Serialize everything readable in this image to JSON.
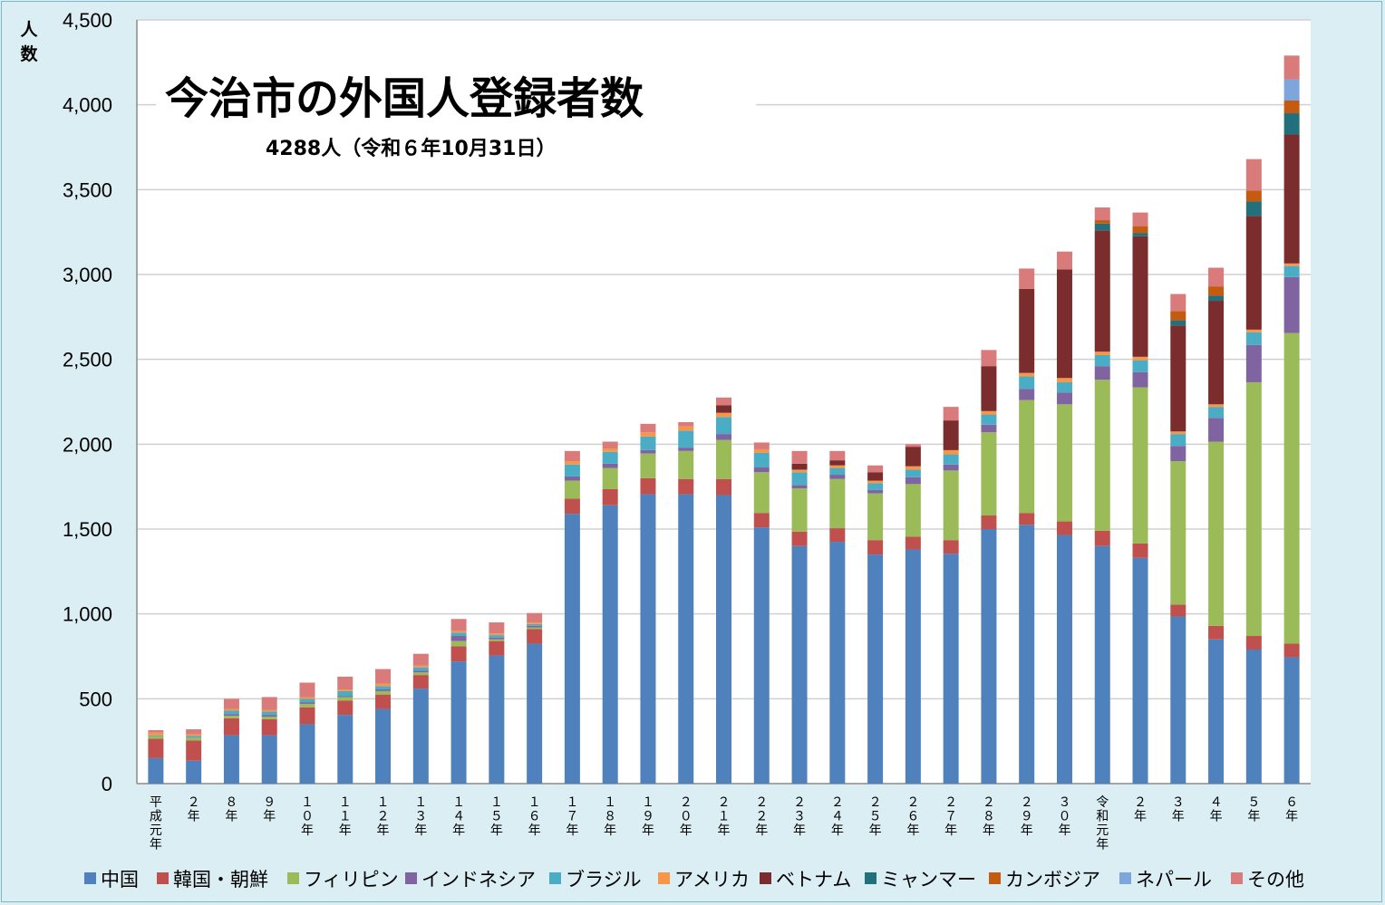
{
  "chart_data": {
    "type": "bar",
    "stacked": true,
    "title": "今治市の外国人登録者数",
    "subtitle": "4288人（令和６年10月31日）",
    "ylabel": "人数",
    "ylim": [
      0,
      4500
    ],
    "yticks": [
      "0",
      "500",
      "1,000",
      "1,500",
      "2,000",
      "2,500",
      "3,000",
      "3,500",
      "4,000",
      "4,500"
    ],
    "grid": true,
    "legend_position": "bottom",
    "categories": [
      "平成元年",
      "2年",
      "8年",
      "9年",
      "10年",
      "11年",
      "12年",
      "13年",
      "14年",
      "15年",
      "16年",
      "17年",
      "18年",
      "19年",
      "20年",
      "21年",
      "22年",
      "23年",
      "24年",
      "25年",
      "26年",
      "27年",
      "28年",
      "29年",
      "30年",
      "令和元年",
      "2年",
      "3年",
      "4年",
      "5年",
      "6年"
    ],
    "category_labels": [
      "平成元年",
      "２年",
      "８年",
      "９年",
      "１０年",
      "１１年",
      "１２年",
      "１３年",
      "１４年",
      "１５年",
      "１６年",
      "１７年",
      "１８年",
      "１９年",
      "２０年",
      "２１年",
      "２２年",
      "２３年",
      "２４年",
      "２５年",
      "２６年",
      "２７年",
      "２８年",
      "２９年",
      "３０年",
      "令和元年",
      "２年",
      "３年",
      "４年",
      "５年",
      "６年"
    ],
    "series": [
      {
        "name": "中国",
        "color": "#4f81bd",
        "values": [
          150,
          135,
          285,
          285,
          350,
          405,
          440,
          560,
          720,
          755,
          825,
          1590,
          1640,
          1705,
          1705,
          1700,
          1510,
          1400,
          1425,
          1350,
          1380,
          1355,
          1500,
          1525,
          1465,
          1400,
          1330,
          985,
          850,
          790,
          745
        ]
      },
      {
        "name": "韓国・朝鮮",
        "color": "#c0504d",
        "values": [
          115,
          120,
          100,
          95,
          100,
          85,
          85,
          80,
          90,
          85,
          85,
          90,
          95,
          95,
          90,
          95,
          85,
          85,
          80,
          85,
          75,
          80,
          80,
          70,
          80,
          90,
          85,
          70,
          80,
          80,
          80
        ]
      },
      {
        "name": "フィリピン",
        "color": "#9bbb59",
        "values": [
          15,
          15,
          15,
          15,
          20,
          20,
          20,
          15,
          30,
          10,
          10,
          105,
          125,
          145,
          165,
          230,
          240,
          255,
          290,
          275,
          310,
          410,
          490,
          665,
          690,
          890,
          920,
          845,
          1085,
          1495,
          1830
        ]
      },
      {
        "name": "インドネシア",
        "color": "#8064a2",
        "values": [
          0,
          0,
          10,
          10,
          10,
          5,
          10,
          10,
          30,
          10,
          10,
          25,
          25,
          20,
          20,
          35,
          30,
          20,
          25,
          20,
          40,
          35,
          45,
          65,
          70,
          80,
          90,
          90,
          140,
          220,
          330
        ]
      },
      {
        "name": "ブラジル",
        "color": "#4bacc6",
        "values": [
          5,
          10,
          20,
          20,
          20,
          30,
          20,
          20,
          20,
          15,
          10,
          70,
          70,
          80,
          100,
          100,
          85,
          75,
          40,
          40,
          45,
          60,
          60,
          75,
          60,
          65,
          70,
          70,
          65,
          75,
          65
        ]
      },
      {
        "name": "アメリカ",
        "color": "#f79646",
        "values": [
          15,
          10,
          10,
          10,
          10,
          10,
          15,
          10,
          10,
          10,
          10,
          20,
          20,
          25,
          25,
          25,
          20,
          15,
          15,
          15,
          20,
          25,
          20,
          20,
          25,
          20,
          20,
          15,
          15,
          15,
          15
        ]
      },
      {
        "name": "ベトナム",
        "color": "#7b2c2c",
        "values": [
          0,
          0,
          0,
          0,
          0,
          0,
          0,
          0,
          0,
          0,
          0,
          0,
          0,
          0,
          0,
          45,
          0,
          35,
          30,
          50,
          115,
          175,
          265,
          495,
          640,
          715,
          710,
          625,
          610,
          670,
          760
        ]
      },
      {
        "name": "ミャンマー",
        "color": "#23707d",
        "values": [
          0,
          0,
          0,
          0,
          0,
          0,
          0,
          0,
          0,
          0,
          0,
          0,
          0,
          0,
          0,
          0,
          0,
          0,
          0,
          0,
          0,
          0,
          0,
          0,
          0,
          40,
          20,
          30,
          30,
          85,
          125
        ]
      },
      {
        "name": "カンボジア",
        "color": "#c55a11",
        "values": [
          0,
          0,
          0,
          0,
          0,
          0,
          0,
          0,
          0,
          0,
          0,
          0,
          0,
          0,
          0,
          0,
          0,
          0,
          0,
          0,
          0,
          0,
          0,
          0,
          0,
          20,
          40,
          55,
          55,
          65,
          75
        ]
      },
      {
        "name": "ネパール",
        "color": "#7ea6dc",
        "values": [
          0,
          0,
          0,
          0,
          0,
          0,
          0,
          0,
          0,
          0,
          0,
          0,
          0,
          0,
          0,
          0,
          0,
          0,
          0,
          0,
          0,
          0,
          0,
          0,
          0,
          0,
          0,
          0,
          0,
          0,
          125
        ]
      },
      {
        "name": "その他",
        "color": "#d97b7b",
        "values": [
          15,
          30,
          60,
          75,
          85,
          75,
          85,
          70,
          70,
          65,
          55,
          60,
          40,
          50,
          25,
          45,
          40,
          75,
          55,
          40,
          15,
          80,
          95,
          120,
          105,
          75,
          80,
          100,
          110,
          185,
          140
        ]
      }
    ]
  }
}
